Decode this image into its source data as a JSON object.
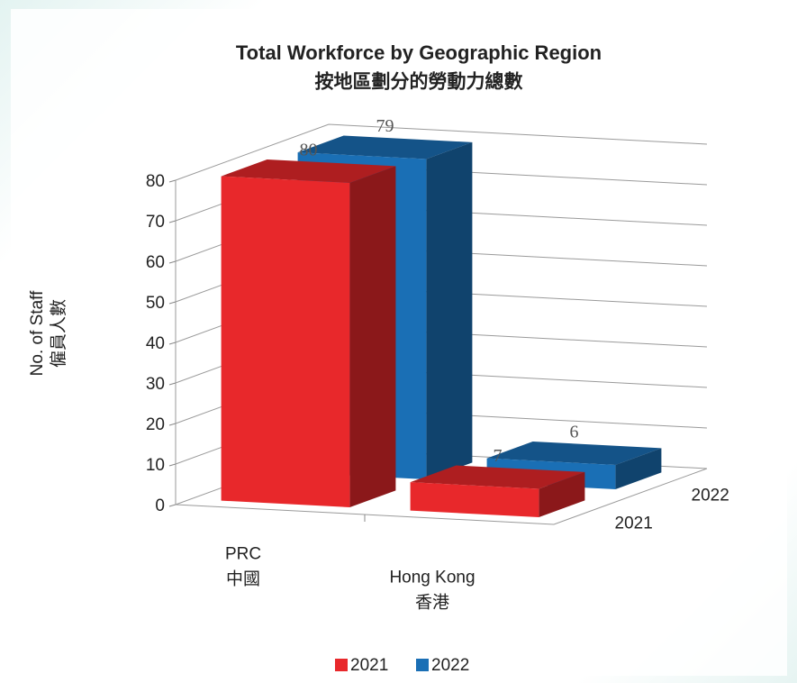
{
  "chart_data": {
    "type": "bar3d",
    "title": "Total Workforce by Geographic Region",
    "subtitle": "按地區劃分的勞動力總數",
    "ylabel": [
      "No. of Staff",
      "僱員人數"
    ],
    "categories": [
      "PRC",
      "Hong Kong"
    ],
    "categories_zh": [
      "中國",
      "香港"
    ],
    "series": [
      {
        "name": "2021",
        "color": "#e8282b",
        "values": [
          80,
          7
        ]
      },
      {
        "name": "2022",
        "color": "#1a6fb5",
        "values": [
          79,
          6
        ]
      }
    ],
    "ylim": [
      0,
      80
    ],
    "yticks": [
      0,
      10,
      20,
      30,
      40,
      50,
      60,
      70,
      80
    ],
    "grid": true,
    "legend": "bottom"
  }
}
